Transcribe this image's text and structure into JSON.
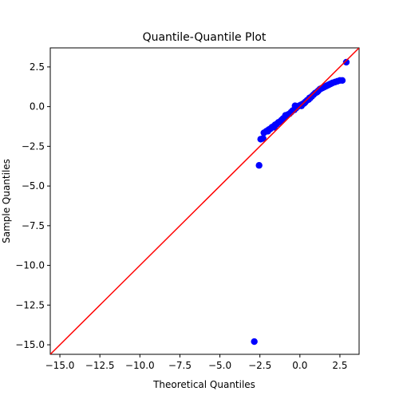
{
  "chart_data": {
    "type": "scatter",
    "title": "Quantile-Quantile Plot",
    "xlabel": "Theoretical Quantiles",
    "ylabel": "Sample Quantiles",
    "xlim": [
      -15.6,
      3.7
    ],
    "ylim": [
      -15.6,
      3.7
    ],
    "xticks": [
      -15.0,
      -12.5,
      -10.0,
      -7.5,
      -5.0,
      -2.5,
      0.0,
      2.5
    ],
    "yticks": [
      -15.0,
      -12.5,
      -10.0,
      -7.5,
      -5.0,
      -2.5,
      0.0,
      2.5
    ],
    "tick_labels": {
      "x": [
        "−15.0",
        "−12.5",
        "−10.0",
        "−7.5",
        "−5.0",
        "−2.5",
        "0.0",
        "2.5"
      ],
      "y": [
        "−15.0",
        "−12.5",
        "−10.0",
        "−7.5",
        "−5.0",
        "−2.5",
        "0.0",
        "2.5"
      ]
    },
    "grid": false,
    "legend": "none",
    "colors": {
      "points": "#0000ff",
      "reference_line": "#ff0000"
    },
    "reference_line": {
      "x": [
        -15.6,
        3.7
      ],
      "y": [
        -15.6,
        3.7
      ]
    },
    "series": [
      {
        "points": [
          [
            -2.85,
            -14.8
          ],
          [
            -2.55,
            -3.7
          ],
          [
            -2.45,
            -2.05
          ],
          [
            -2.3,
            -2.0
          ],
          [
            -2.25,
            -1.65
          ],
          [
            -2.1,
            -1.55
          ],
          [
            -1.95,
            -1.45
          ],
          [
            -1.85,
            -1.4
          ],
          [
            -1.75,
            -1.3
          ],
          [
            -1.65,
            -1.25
          ],
          [
            -1.55,
            -1.15
          ],
          [
            -1.45,
            -1.1
          ],
          [
            -1.35,
            -1.0
          ],
          [
            -1.25,
            -0.95
          ],
          [
            -1.15,
            -0.85
          ],
          [
            -1.05,
            -0.75
          ],
          [
            -0.95,
            -0.7
          ],
          [
            -0.85,
            -0.6
          ],
          [
            -0.75,
            -0.5
          ],
          [
            -0.65,
            -0.45
          ],
          [
            -0.55,
            -0.35
          ],
          [
            -0.45,
            -0.25
          ],
          [
            -0.35,
            -0.2
          ],
          [
            -0.25,
            -0.1
          ],
          [
            -0.15,
            0.0
          ],
          [
            -0.05,
            0.05
          ],
          [
            0.05,
            0.1
          ],
          [
            0.15,
            0.15
          ],
          [
            0.25,
            0.2
          ],
          [
            0.35,
            0.3
          ],
          [
            0.45,
            0.4
          ],
          [
            0.55,
            0.45
          ],
          [
            0.65,
            0.55
          ],
          [
            0.75,
            0.65
          ],
          [
            0.85,
            0.75
          ],
          [
            0.95,
            0.85
          ],
          [
            1.05,
            0.9
          ],
          [
            1.15,
            1.0
          ],
          [
            1.25,
            1.1
          ],
          [
            1.35,
            1.15
          ],
          [
            1.45,
            1.2
          ],
          [
            1.55,
            1.25
          ],
          [
            1.65,
            1.3
          ],
          [
            1.75,
            1.35
          ],
          [
            1.85,
            1.4
          ],
          [
            1.95,
            1.45
          ],
          [
            2.05,
            1.5
          ],
          [
            2.2,
            1.55
          ],
          [
            2.35,
            1.6
          ],
          [
            2.5,
            1.65
          ],
          [
            2.65,
            1.65
          ],
          [
            2.9,
            2.8
          ],
          [
            -0.3,
            0.05
          ],
          [
            0.1,
            0.05
          ],
          [
            -0.9,
            -0.55
          ],
          [
            0.6,
            0.55
          ],
          [
            1.1,
            0.95
          ],
          [
            -1.6,
            -1.3
          ],
          [
            -2.0,
            -1.55
          ],
          [
            0.3,
            0.25
          ]
        ]
      }
    ]
  }
}
